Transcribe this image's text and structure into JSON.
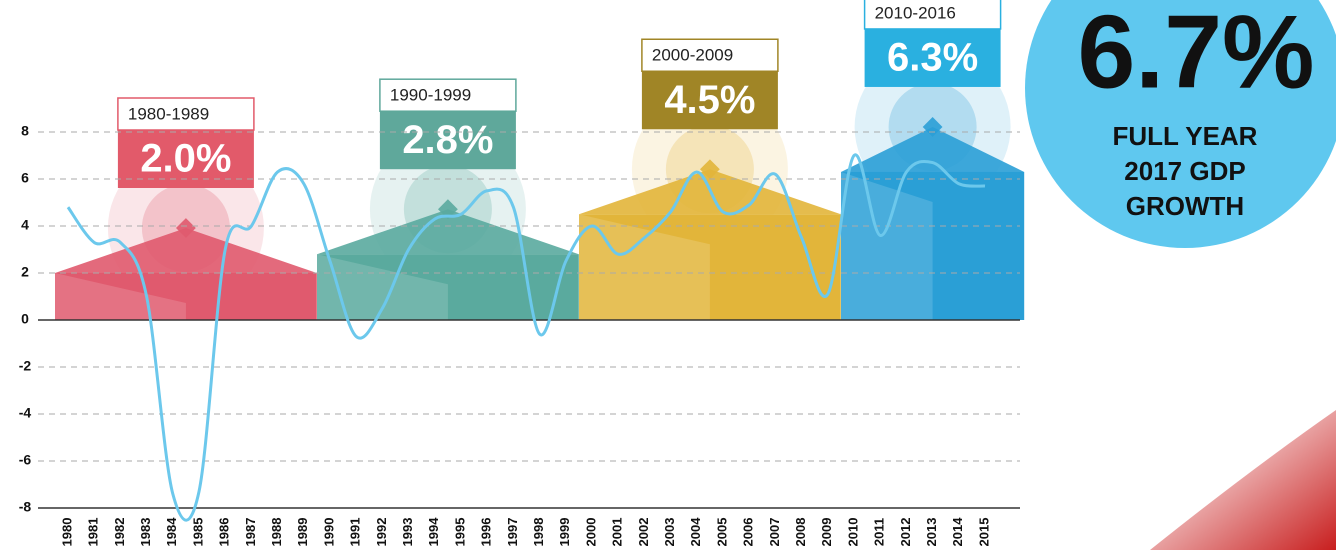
{
  "chart_data": {
    "type": "line",
    "categories": [
      "1980",
      "1981",
      "1982",
      "1983",
      "1984",
      "1985",
      "1986",
      "1987",
      "1988",
      "1989",
      "1990",
      "1991",
      "1992",
      "1993",
      "1994",
      "1995",
      "1996",
      "1997",
      "1998",
      "1999",
      "2000",
      "2001",
      "2002",
      "2003",
      "2004",
      "2005",
      "2006",
      "2007",
      "2008",
      "2009",
      "2010",
      "2011",
      "2012",
      "2013",
      "2014",
      "2015"
    ],
    "values": [
      4.8,
      3.3,
      3.3,
      1.0,
      -7.4,
      -7.3,
      3.0,
      4.0,
      6.3,
      5.8,
      2.5,
      -0.7,
      0.5,
      3.0,
      4.3,
      4.5,
      5.5,
      4.8,
      -0.6,
      2.5,
      4.0,
      2.8,
      3.5,
      4.6,
      6.3,
      4.6,
      4.9,
      6.2,
      3.5,
      1.1,
      7.0,
      3.6,
      6.3,
      6.7,
      5.8,
      5.7
    ],
    "color": "#6cc8ec",
    "ylim": [
      -8,
      8
    ],
    "yticks": [
      -8,
      -6,
      -4,
      -2,
      0,
      2,
      4,
      6,
      8
    ],
    "grid": true,
    "decades": [
      {
        "label": "1980-1989",
        "value": 2.0,
        "value_label": "2.0%",
        "color": "#e05a6e"
      },
      {
        "label": "1990-1999",
        "value": 2.8,
        "value_label": "2.8%",
        "color": "#5aaa9e"
      },
      {
        "label": "2000-2009",
        "value": 4.5,
        "value_label": "4.5%",
        "color": "#e2b53a"
      },
      {
        "label": "2010-2016",
        "value": 6.3,
        "value_label": "6.3%",
        "color": "#2a9fd6"
      }
    ],
    "label_colors": [
      "#e25a6a",
      "#5fa89b",
      "#a08526",
      "#2ab0e0"
    ],
    "highlight": "6.7%",
    "caption": [
      "FULL YEAR",
      "2017 GDP",
      "GROWTH"
    ]
  }
}
